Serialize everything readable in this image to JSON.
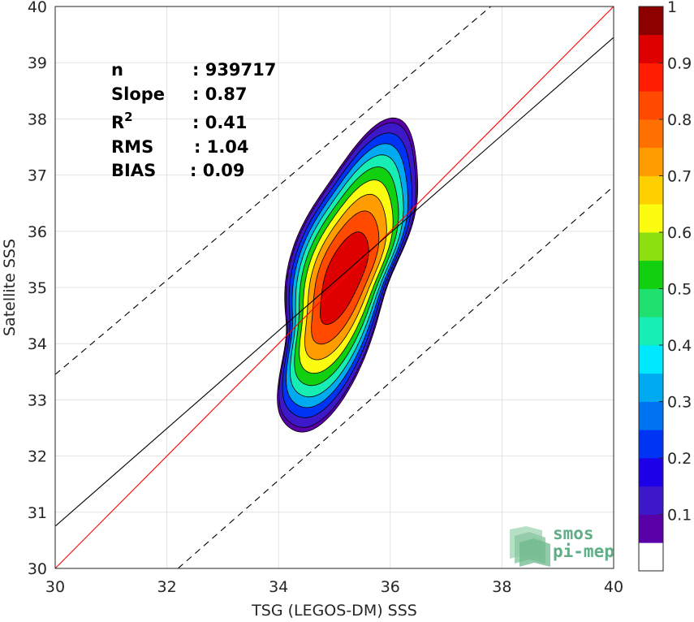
{
  "chart_data": {
    "type": "contour",
    "xlabel": "TSG (LEGOS-DM) SSS",
    "ylabel": "Satellite SSS",
    "xlim": [
      30,
      40
    ],
    "ylim": [
      30,
      40
    ],
    "xticks": [
      30,
      32,
      34,
      36,
      38,
      40
    ],
    "yticks": [
      30,
      31,
      32,
      33,
      34,
      35,
      36,
      37,
      38,
      39,
      40
    ],
    "grid": true,
    "stats": [
      {
        "label": "n",
        "value": ": 939717"
      },
      {
        "label": "Slope",
        "value": ": 0.87"
      },
      {
        "label": "R",
        "sup": "2",
        "value": ": 0.41"
      },
      {
        "label": "RMS",
        "value": ": 1.04"
      },
      {
        "label": "BIAS",
        "value": ": 0.09"
      }
    ],
    "lines": [
      {
        "kind": "one-to-one",
        "color": "#ff0000",
        "style": "solid",
        "slope": 1,
        "intercept": 0
      },
      {
        "kind": "regression",
        "color": "#000000",
        "style": "solid",
        "x": [
          30,
          40
        ],
        "y": [
          30.75,
          39.45
        ]
      },
      {
        "kind": "upper-bound",
        "color": "#000000",
        "style": "dashed",
        "x": [
          30,
          37.8
        ],
        "y": [
          33.45,
          40
        ]
      },
      {
        "kind": "lower-bound",
        "color": "#000000",
        "style": "dashed",
        "x": [
          32.2,
          40
        ],
        "y": [
          30,
          36.8
        ]
      }
    ],
    "contour_center": [
      35.15,
      35.15
    ],
    "contour_levels": [
      0.05,
      0.1,
      0.2,
      0.3,
      0.4,
      0.5,
      0.6,
      0.7,
      0.8,
      0.9
    ],
    "colorbar": {
      "ticks": [
        0.1,
        0.2,
        0.3,
        0.4,
        0.5,
        0.6,
        0.7,
        0.8,
        0.9,
        1
      ],
      "range": [
        0,
        1
      ],
      "bins": [
        {
          "from": 0.0,
          "to": 0.05,
          "color": "#ffffff"
        },
        {
          "from": 0.05,
          "to": 0.1,
          "color": "#5a00a8"
        },
        {
          "from": 0.1,
          "to": 0.15,
          "color": "#3c18c8"
        },
        {
          "from": 0.15,
          "to": 0.2,
          "color": "#1e00e8"
        },
        {
          "from": 0.2,
          "to": 0.25,
          "color": "#0034f4"
        },
        {
          "from": 0.25,
          "to": 0.3,
          "color": "#0074f0"
        },
        {
          "from": 0.3,
          "to": 0.35,
          "color": "#00aaf0"
        },
        {
          "from": 0.35,
          "to": 0.4,
          "color": "#00e8ff"
        },
        {
          "from": 0.4,
          "to": 0.45,
          "color": "#16eeb4"
        },
        {
          "from": 0.45,
          "to": 0.5,
          "color": "#20e070"
        },
        {
          "from": 0.5,
          "to": 0.55,
          "color": "#10d010"
        },
        {
          "from": 0.55,
          "to": 0.6,
          "color": "#8ce010"
        },
        {
          "from": 0.6,
          "to": 0.65,
          "color": "#fcfc10"
        },
        {
          "from": 0.65,
          "to": 0.7,
          "color": "#ffd000"
        },
        {
          "from": 0.7,
          "to": 0.75,
          "color": "#ff9c00"
        },
        {
          "from": 0.75,
          "to": 0.8,
          "color": "#ff7000"
        },
        {
          "from": 0.8,
          "to": 0.85,
          "color": "#ff4a00"
        },
        {
          "from": 0.85,
          "to": 0.9,
          "color": "#ff1c00"
        },
        {
          "from": 0.9,
          "to": 0.95,
          "color": "#de0000"
        },
        {
          "from": 0.95,
          "to": 1.0,
          "color": "#8c0000"
        }
      ]
    }
  },
  "logo": {
    "line1": "smos",
    "line2": "pi-mep"
  }
}
